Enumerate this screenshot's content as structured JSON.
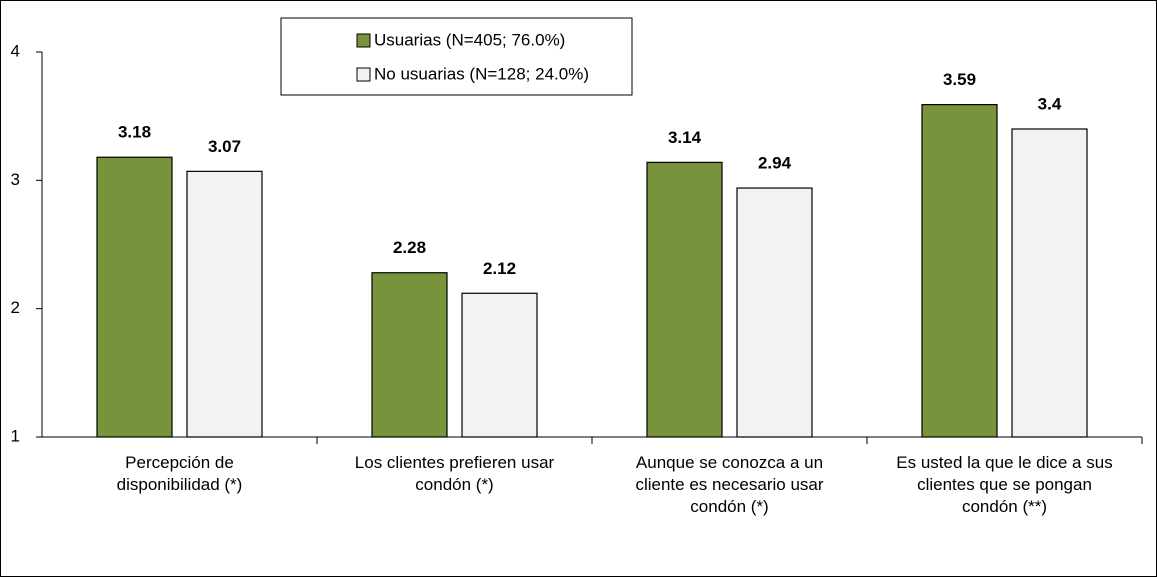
{
  "chart_data": {
    "type": "bar",
    "categories": [
      "Percepción de\ndisponibilidad (*)",
      "Los clientes prefieren usar\ncondón (*)",
      "Aunque se conozca a un\ncliente es necesario usar\ncondón (*)",
      "Es usted la que le dice a sus\nclientes que se pongan\ncondón (**)"
    ],
    "series": [
      {
        "name": "Usuarias (N=405; 76.0%)",
        "color": "#77933c",
        "values": [
          3.18,
          2.28,
          3.14,
          3.59
        ]
      },
      {
        "name": "No usuarias (N=128; 24.0%)",
        "color": "#f2f2f2",
        "values": [
          3.07,
          2.12,
          2.94,
          3.4
        ]
      }
    ],
    "ylim": [
      1,
      4
    ],
    "yticks": [
      1,
      2,
      3,
      4
    ],
    "grid": false,
    "legend": "top"
  }
}
